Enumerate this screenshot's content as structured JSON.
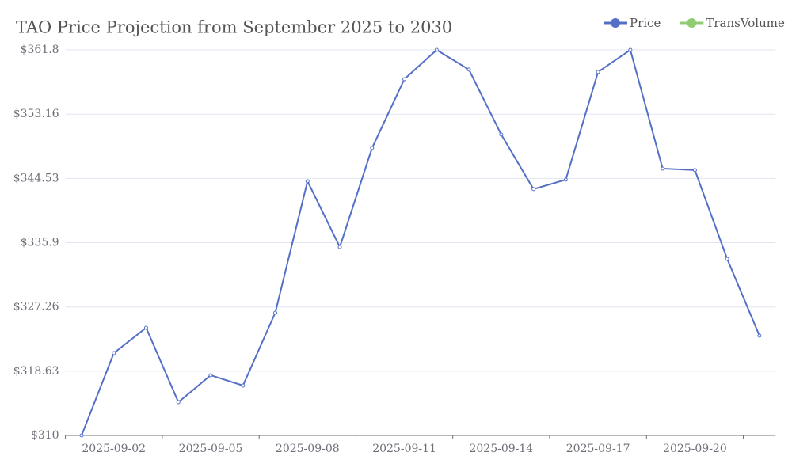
{
  "chart_data": {
    "type": "line",
    "title": "TAO Price Projection from September 2025 to 2030",
    "categories": [
      null,
      "2025-09-02",
      null,
      null,
      "2025-09-05",
      null,
      null,
      "2025-09-08",
      null,
      null,
      "2025-09-11",
      null,
      null,
      "2025-09-14",
      null,
      null,
      "2025-09-17",
      null,
      null,
      "2025-09-20",
      null,
      null
    ],
    "series": [
      {
        "name": "Price",
        "color": "#5470c6",
        "values": [
          310,
          321.06,
          324.47,
          314.47,
          318.09,
          316.7,
          326.49,
          344.15,
          335.32,
          348.62,
          357.87,
          361.8,
          359.15,
          350.43,
          343.09,
          344.36,
          358.83,
          361.8,
          345.85,
          345.64,
          333.72,
          323.4
        ]
      },
      {
        "name": "TransVolume",
        "color": "#91cc75",
        "values": [
          null,
          null,
          null,
          null,
          null,
          null,
          null,
          null,
          null,
          null,
          null,
          null,
          null,
          null,
          null,
          null,
          null,
          null,
          null,
          null,
          null,
          null
        ]
      }
    ],
    "ylim": [
      310,
      361.8
    ],
    "yticks": [
      {
        "value": 310,
        "label": "$310"
      },
      {
        "value": 318.63,
        "label": "$318.63"
      },
      {
        "value": 327.26,
        "label": "$327.26"
      },
      {
        "value": 335.9,
        "label": "$335.9"
      },
      {
        "value": 344.53,
        "label": "$344.53"
      },
      {
        "value": 353.16,
        "label": "$353.16"
      },
      {
        "value": 361.8,
        "label": "$361.8"
      }
    ],
    "grid": true,
    "legend": "top-right"
  }
}
